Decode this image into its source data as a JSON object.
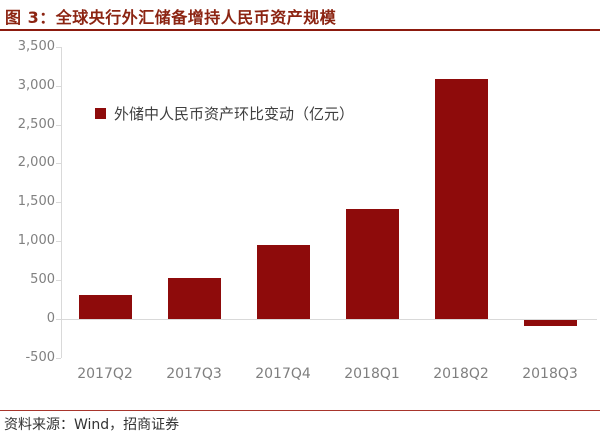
{
  "header": {
    "title": "图 3：全球央行外汇储备增持人民币资产规模"
  },
  "footer": {
    "source": "资料来源：Wind，招商证券"
  },
  "chart_data": {
    "type": "bar",
    "title": "图 3：全球央行外汇储备增持人民币资产规模",
    "legend": "外储中人民币资产环比变动（亿元）",
    "legend_position": "top-left-inside",
    "categories": [
      "2017Q2",
      "2017Q3",
      "2017Q4",
      "2018Q1",
      "2018Q2",
      "2018Q3"
    ],
    "values": [
      310,
      530,
      950,
      1420,
      3090,
      -75
    ],
    "unit": "亿元",
    "ylim": [
      -500,
      3500
    ],
    "ytick_step": 500,
    "ytick_values": [
      3500,
      3000,
      2500,
      2000,
      1500,
      1000,
      500,
      0,
      -500
    ],
    "ytick_labels": [
      "3,500",
      "3,000",
      "2,500",
      "2,000",
      "1,500",
      "1,000",
      "500",
      "0",
      "-500"
    ],
    "grid": false,
    "colors": {
      "bar": "#8E0B0B",
      "axis": "#D9D9D9",
      "tick_label": "#808080",
      "title": "#8C2412",
      "title_rule": "#8C1A0E",
      "footer_rule": "#A8352C"
    }
  }
}
